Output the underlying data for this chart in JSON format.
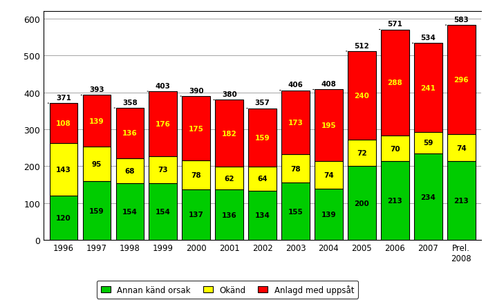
{
  "years": [
    "1996",
    "1997",
    "1998",
    "1999",
    "2000",
    "2001",
    "2002",
    "2003",
    "2004",
    "2005",
    "2006",
    "2007",
    "Prel.\n2008"
  ],
  "annan": [
    120,
    159,
    154,
    154,
    137,
    136,
    134,
    155,
    139,
    200,
    213,
    234,
    213
  ],
  "okand": [
    143,
    95,
    68,
    73,
    78,
    62,
    64,
    78,
    74,
    72,
    70,
    59,
    74
  ],
  "anlagd": [
    108,
    139,
    136,
    176,
    175,
    182,
    159,
    173,
    195,
    240,
    288,
    241,
    296
  ],
  "totals": [
    371,
    393,
    358,
    403,
    390,
    380,
    357,
    406,
    408,
    512,
    571,
    534,
    583
  ],
  "color_annan": "#00CC00",
  "color_okand": "#FFFF00",
  "color_anlagd": "#FF0000",
  "bar_edge_color": "#000000",
  "ylim": [
    0,
    620
  ],
  "yticks": [
    0,
    100,
    200,
    300,
    400,
    500,
    600
  ],
  "legend_labels": [
    "Annan känd orsak",
    "Okänd",
    "Anlagd med uppsåt"
  ],
  "figsize": [
    7.03,
    4.35
  ],
  "dpi": 100
}
